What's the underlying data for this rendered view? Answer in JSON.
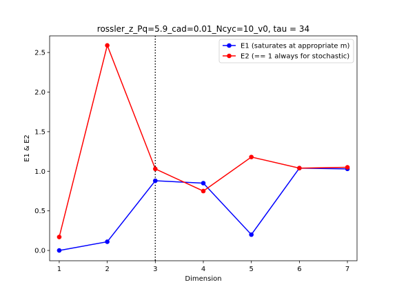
{
  "chart_data": {
    "type": "line",
    "title": "rossler_z_Pq=5.9_cad=0.01_Ncyc=10_v0, tau = 34",
    "xlabel": "Dimension",
    "ylabel": "E1 & E2",
    "x": [
      1,
      2,
      3,
      4,
      5,
      6,
      7
    ],
    "xlim": [
      0.8,
      7.2
    ],
    "ylim": [
      -0.13,
      2.71
    ],
    "xticks": [
      "1",
      "2",
      "3",
      "4",
      "5",
      "6",
      "7"
    ],
    "yticks": [
      "0.0",
      "0.5",
      "1.0",
      "1.5",
      "2.0",
      "2.5"
    ],
    "vline": {
      "x": 3,
      "style": "dotted",
      "color": "#000000"
    },
    "legend_position": "top-right",
    "grid": false,
    "series": [
      {
        "name": "E1 (saturates at appropriate m)",
        "color": "#0000ff",
        "values": [
          0.0,
          0.11,
          0.88,
          0.85,
          0.2,
          1.04,
          1.03
        ]
      },
      {
        "name": "E2 (== 1 always for stochastic)",
        "color": "#ff0000",
        "values": [
          0.17,
          2.59,
          1.03,
          0.75,
          1.18,
          1.04,
          1.05
        ]
      }
    ]
  }
}
